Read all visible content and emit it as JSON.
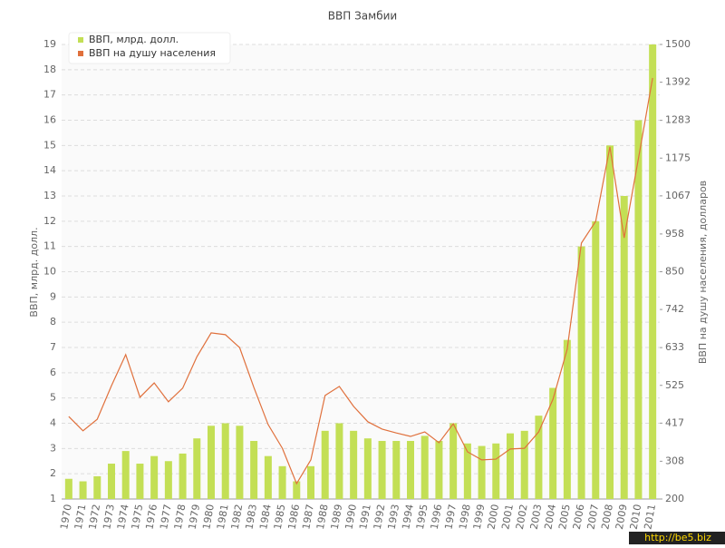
{
  "chart_data": {
    "type": "bar",
    "title": "ВВП Замбии",
    "y_label": "ВВП, млрд. долл.",
    "y2_label": "ВВП на душу населения, долларов",
    "categories": [
      "1970",
      "1971",
      "1972",
      "1973",
      "1974",
      "1975",
      "1976",
      "1977",
      "1978",
      "1979",
      "1980",
      "1981",
      "1982",
      "1983",
      "1984",
      "1985",
      "1986",
      "1987",
      "1988",
      "1989",
      "1990",
      "1991",
      "1992",
      "1993",
      "1994",
      "1995",
      "1996",
      "1997",
      "1998",
      "1999",
      "2000",
      "2001",
      "2002",
      "2003",
      "2004",
      "2005",
      "2006",
      "2007",
      "2008",
      "2009",
      "2010",
      "2011"
    ],
    "series": [
      {
        "name": "ВВП, млрд. долл.",
        "type": "bar",
        "axis": "y",
        "color": "#c3df55",
        "values": [
          1.8,
          1.7,
          1.9,
          2.4,
          2.9,
          2.4,
          2.7,
          2.5,
          2.8,
          3.4,
          3.9,
          4.0,
          3.9,
          3.3,
          2.7,
          2.3,
          1.7,
          2.3,
          3.7,
          4.0,
          3.7,
          3.4,
          3.3,
          3.3,
          3.3,
          3.5,
          3.3,
          4.0,
          3.2,
          3.1,
          3.2,
          3.6,
          3.7,
          4.3,
          5.4,
          7.3,
          11.0,
          12.0,
          15.0,
          13.0,
          16.0,
          19.0
        ]
      },
      {
        "name": "ВВП на душу населения",
        "type": "line",
        "axis": "y2",
        "color": "#e0703c",
        "values": [
          436,
          395,
          428,
          524,
          613,
          491,
          532,
          478,
          517,
          607,
          675,
          670,
          633,
          519,
          413,
          345,
          244,
          312,
          496,
          522,
          465,
          421,
          400,
          389,
          379,
          392,
          361,
          415,
          335,
          312,
          314,
          343,
          345,
          392,
          485,
          628,
          932,
          994,
          1207,
          947,
          1173,
          1404
        ]
      }
    ],
    "ylim": [
      1,
      19
    ],
    "yticks": [
      1,
      2,
      3,
      4,
      5,
      6,
      7,
      8,
      9,
      10,
      11,
      12,
      13,
      14,
      15,
      16,
      17,
      18,
      19
    ],
    "y2lim": [
      200,
      1500
    ],
    "y2ticks": [
      200,
      308,
      417,
      525,
      633,
      742,
      850,
      958,
      1067,
      1175,
      1283,
      1392,
      1500
    ],
    "grid": true,
    "legend": "top-left",
    "watermark": "http://be5.biz"
  }
}
